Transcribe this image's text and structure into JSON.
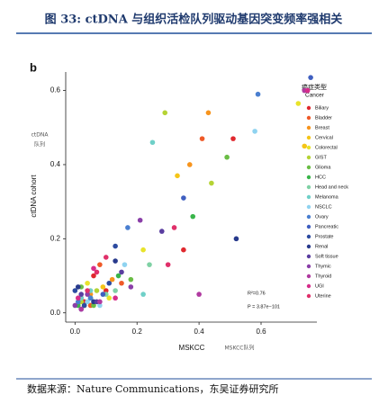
{
  "header": {
    "title": "图 33: ctDNA 与组织活检队列驱动基因突变频率强相关"
  },
  "footer": {
    "source": "数据来源：Nature Communications，东吴证券研究所"
  },
  "chart_data": {
    "type": "scatter",
    "panel_label": "b",
    "x_label": "MSKCC",
    "x_label_cn": "MSKCC队列",
    "y_label": "ctDNA cohort",
    "y_label_cn": [
      "ctDNA",
      "队列"
    ],
    "legend_title_cn": "癌症类型",
    "legend_title": "Cancer",
    "annotations": [
      "R²=0.76",
      "P = 3.87e−101"
    ],
    "xlim": [
      -0.03,
      0.78
    ],
    "ylim": [
      -0.025,
      0.65
    ],
    "xticks": [
      {
        "value": 0,
        "label": "0.0"
      },
      0.2,
      0.4,
      0.6
    ],
    "yticks": [
      {
        "value": 0,
        "label": "0.0"
      },
      0.2,
      0.4,
      0.6
    ],
    "series": [
      {
        "name": "Biliary",
        "color": "#e0282e",
        "x": [
          0.51,
          0.35,
          0.06,
          0.1,
          0.03
        ],
        "values": [
          0.47,
          0.17,
          0.1,
          0.06,
          0.03
        ]
      },
      {
        "name": "Bladder",
        "color": "#ef5a28",
        "x": [
          0.41,
          0.08,
          0.15,
          0.02,
          0.05
        ],
        "values": [
          0.47,
          0.13,
          0.08,
          0.04,
          0.02
        ]
      },
      {
        "name": "Breast",
        "color": "#f7941d",
        "x": [
          0.43,
          0.37,
          0.12,
          0.05,
          0.02
        ],
        "values": [
          0.54,
          0.4,
          0.09,
          0.05,
          0.03
        ]
      },
      {
        "name": "Cervical",
        "color": "#f5c518",
        "x": [
          0.74,
          0.33,
          0.09,
          0.03
        ],
        "values": [
          0.45,
          0.37,
          0.07,
          0.02
        ]
      },
      {
        "name": "Colorectal",
        "color": "#e8e32a",
        "x": [
          0.72,
          0.22,
          0.04,
          0.11
        ],
        "values": [
          0.565,
          0.17,
          0.08,
          0.04
        ]
      },
      {
        "name": "GIST",
        "color": "#b5d334",
        "x": [
          0.29,
          0.44,
          0.07,
          0.02
        ],
        "values": [
          0.54,
          0.35,
          0.06,
          0.03
        ]
      },
      {
        "name": "Glioma",
        "color": "#6abd45",
        "x": [
          0.49,
          0.18,
          0.02,
          0.06
        ],
        "values": [
          0.42,
          0.09,
          0.07,
          0.02
        ]
      },
      {
        "name": "HCC",
        "color": "#39b54a",
        "x": [
          0.38,
          0.14,
          0.05,
          0.01
        ],
        "values": [
          0.26,
          0.1,
          0.04,
          0.02
        ]
      },
      {
        "name": "Head and neck",
        "color": "#7fd1a4",
        "x": [
          0.24,
          0.1,
          0.03,
          0.13
        ],
        "values": [
          0.13,
          0.05,
          0.02,
          0.06
        ]
      },
      {
        "name": "Melanoma",
        "color": "#6fd0c8",
        "x": [
          0.25,
          0.22,
          0.05,
          0.02
        ],
        "values": [
          0.46,
          0.05,
          0.06,
          0.04
        ]
      },
      {
        "name": "NSCLC",
        "color": "#8fd3f0",
        "x": [
          0.58,
          0.16,
          0.04,
          0.08
        ],
        "values": [
          0.49,
          0.13,
          0.03,
          0.02
        ]
      },
      {
        "name": "Ovary",
        "color": "#4a7fd0",
        "x": [
          0.59,
          0.17,
          0.05,
          0.01
        ],
        "values": [
          0.59,
          0.23,
          0.04,
          0.03
        ]
      },
      {
        "name": "Pancreatic",
        "color": "#3f5fc0",
        "x": [
          0.76,
          0.35,
          0.09,
          0.02
        ],
        "values": [
          0.635,
          0.31,
          0.05,
          0.01
        ]
      },
      {
        "name": "Prostate",
        "color": "#2c4ba0",
        "x": [
          0.13,
          0.11,
          0.03,
          0.0
        ],
        "values": [
          0.18,
          0.08,
          0.02,
          0.06
        ]
      },
      {
        "name": "Renal",
        "color": "#283a8c",
        "x": [
          0.52,
          0.13,
          0.06,
          0.01
        ],
        "values": [
          0.2,
          0.14,
          0.03,
          0.07
        ]
      },
      {
        "name": "Soft tissue",
        "color": "#5a3ea0",
        "x": [
          0.28,
          0.15,
          0.07,
          0.02
        ],
        "values": [
          0.22,
          0.11,
          0.03,
          0.05
        ]
      },
      {
        "name": "Thymic",
        "color": "#8a3fa8",
        "x": [
          0.21,
          0.18,
          0.04,
          0.0
        ],
        "values": [
          0.25,
          0.07,
          0.05,
          0.02
        ]
      },
      {
        "name": "Thyroid",
        "color": "#b03aa0",
        "x": [
          0.4,
          0.74,
          0.08,
          0.02
        ],
        "values": [
          0.05,
          0.6,
          0.03,
          0.01
        ]
      },
      {
        "name": "UGI",
        "color": "#d62d8a",
        "x": [
          0.75,
          0.13,
          0.06,
          0.01
        ],
        "values": [
          0.6,
          0.04,
          0.12,
          0.04
        ]
      },
      {
        "name": "Uterine",
        "color": "#e0306a",
        "x": [
          0.32,
          0.3,
          0.1,
          0.04,
          0.07
        ],
        "values": [
          0.23,
          0.13,
          0.15,
          0.06,
          0.11
        ]
      }
    ]
  }
}
